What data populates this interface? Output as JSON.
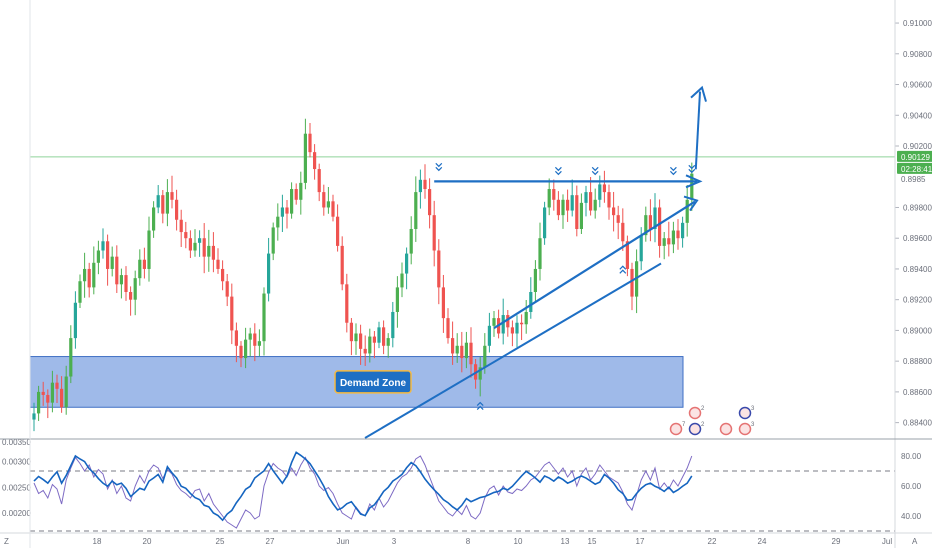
{
  "chart_data": {
    "type": "candlestick",
    "price_axis": {
      "ticks": [
        "0.91000",
        "0.90800",
        "0.90600",
        "0.90400",
        "0.90200",
        "0.89800",
        "0.89600",
        "0.89400",
        "0.89200",
        "0.89000",
        "0.88800",
        "0.88600",
        "0.88400"
      ],
      "tick_values": [
        0.91,
        0.908,
        0.906,
        0.904,
        0.902,
        0.898,
        0.896,
        0.894,
        0.892,
        0.89,
        0.888,
        0.886,
        0.884
      ],
      "range": [
        0.883,
        0.9115
      ],
      "current_price": "0.90129",
      "current_value": 0.90129,
      "countdown": "02:28:41",
      "partial_label": "0.8985"
    },
    "time_axis": {
      "labels": [
        "18",
        "20",
        "25",
        "27",
        "Jun",
        "3",
        "8",
        "10",
        "13",
        "15",
        "17",
        "22",
        "24",
        "29",
        "Jul"
      ]
    },
    "price_series": [
      0.8846,
      0.886,
      0.8858,
      0.8853,
      0.8866,
      0.8862,
      0.885,
      0.887,
      0.8895,
      0.8918,
      0.8932,
      0.894,
      0.8928,
      0.8944,
      0.8952,
      0.8958,
      0.894,
      0.8948,
      0.893,
      0.8936,
      0.8925,
      0.892,
      0.8934,
      0.8946,
      0.894,
      0.8965,
      0.898,
      0.8988,
      0.8976,
      0.899,
      0.8985,
      0.8972,
      0.8964,
      0.896,
      0.8952,
      0.8957,
      0.896,
      0.8948,
      0.8955,
      0.8946,
      0.894,
      0.8932,
      0.8922,
      0.89,
      0.889,
      0.8882,
      0.8894,
      0.8898,
      0.889,
      0.8893,
      0.8924,
      0.895,
      0.8967,
      0.8974,
      0.898,
      0.8976,
      0.8992,
      0.8985,
      0.8996,
      0.9028,
      0.9016,
      0.9005,
      0.899,
      0.898,
      0.8984,
      0.8974,
      0.8955,
      0.893,
      0.8905,
      0.8893,
      0.8898,
      0.8888,
      0.8885,
      0.8896,
      0.8892,
      0.8902,
      0.889,
      0.8895,
      0.8912,
      0.8928,
      0.8937,
      0.895,
      0.8966,
      0.899,
      0.8998,
      0.8992,
      0.8975,
      0.8952,
      0.8928,
      0.8908,
      0.8895,
      0.8885,
      0.889,
      0.8882,
      0.8892,
      0.8878,
      0.8868,
      0.8876,
      0.889,
      0.8903,
      0.8908,
      0.8898,
      0.891,
      0.8902,
      0.8898,
      0.8905,
      0.8904,
      0.8912,
      0.8925,
      0.894,
      0.896,
      0.898,
      0.8992,
      0.8985,
      0.8975,
      0.8985,
      0.8978,
      0.8988,
      0.8966,
      0.8983,
      0.899,
      0.8978,
      0.8985,
      0.8995,
      0.899,
      0.898,
      0.8975,
      0.897,
      0.8958,
      0.894,
      0.8922,
      0.8945,
      0.8962,
      0.8975,
      0.8966,
      0.898,
      0.8955,
      0.896,
      0.8956,
      0.8965,
      0.896,
      0.897,
      0.8985,
      0.9002
    ],
    "rsi_series": [
      62,
      55,
      57,
      52,
      61,
      58,
      48,
      64,
      72,
      79,
      75,
      70,
      74,
      66,
      71,
      68,
      58,
      64,
      55,
      60,
      52,
      50,
      60,
      67,
      62,
      70,
      74,
      72,
      65,
      71,
      68,
      61,
      57,
      55,
      52,
      57,
      58,
      50,
      55,
      48,
      44,
      40,
      36,
      34,
      32,
      38,
      44,
      42,
      38,
      40,
      60,
      69,
      75,
      72,
      70,
      66,
      72,
      67,
      74,
      79,
      72,
      68,
      60,
      57,
      59,
      55,
      48,
      42,
      40,
      38,
      46,
      42,
      40,
      48,
      44,
      52,
      46,
      50,
      56,
      62,
      66,
      68,
      72,
      78,
      80,
      74,
      66,
      58,
      50,
      46,
      42,
      40,
      44,
      41,
      47,
      40,
      38,
      42,
      52,
      58,
      60,
      54,
      60,
      56,
      55,
      58,
      57,
      60,
      64,
      66,
      70,
      74,
      76,
      72,
      68,
      72,
      66,
      70,
      60,
      68,
      72,
      64,
      68,
      74,
      70,
      66,
      64,
      62,
      56,
      48,
      44,
      54,
      64,
      70,
      64,
      72,
      58,
      62,
      58,
      64,
      60,
      66,
      72,
      80
    ],
    "osc_series": [
      0.00262,
      0.00271,
      0.00265,
      0.00258,
      0.0027,
      0.0028,
      0.00258,
      0.00273,
      0.00292,
      0.00311,
      0.00305,
      0.003,
      0.00286,
      0.00278,
      0.00267,
      0.00258,
      0.00252,
      0.00262,
      0.00255,
      0.00258,
      0.00248,
      0.00232,
      0.0024,
      0.00248,
      0.00245,
      0.00262,
      0.00268,
      0.00275,
      0.0026,
      0.0029,
      0.00278,
      0.00268,
      0.00252,
      0.00248,
      0.00238,
      0.0023,
      0.00226,
      0.00215,
      0.00212,
      0.002,
      0.00195,
      0.00186,
      0.00198,
      0.00205,
      0.0022,
      0.00232,
      0.00246,
      0.00252,
      0.00268,
      0.00275,
      0.00282,
      0.00296,
      0.00282,
      0.0027,
      0.00258,
      0.00272,
      0.00298,
      0.00318,
      0.00312,
      0.00305,
      0.00296,
      0.00282,
      0.00268,
      0.00252,
      0.00232,
      0.00218,
      0.00206,
      0.0021,
      0.00218,
      0.00222,
      0.0021,
      0.00198,
      0.00195,
      0.0021,
      0.00216,
      0.00228,
      0.00242,
      0.0025,
      0.00262,
      0.00268,
      0.00275,
      0.00288,
      0.00298,
      0.00292,
      0.0028,
      0.00266,
      0.00255,
      0.00245,
      0.00236,
      0.00226,
      0.0022,
      0.00212,
      0.00206,
      0.00215,
      0.00228,
      0.00222,
      0.00226,
      0.0023,
      0.00232,
      0.00236,
      0.0024,
      0.00242,
      0.00248,
      0.00245,
      0.00252,
      0.00262,
      0.00272,
      0.00281,
      0.00275,
      0.00268,
      0.0026,
      0.00272,
      0.00268,
      0.00262,
      0.0027,
      0.00265,
      0.00258,
      0.00262,
      0.00268,
      0.00272,
      0.00268,
      0.00262,
      0.00256,
      0.0026,
      0.00275,
      0.00268,
      0.00258,
      0.00245,
      0.00238,
      0.00225,
      0.00226,
      0.00238,
      0.00248,
      0.00255,
      0.00258,
      0.00252,
      0.00248,
      0.00242,
      0.0025,
      0.0024,
      0.00245,
      0.00252,
      0.00258,
      0.00272
    ],
    "indicator_axis": {
      "left_ticks": [
        "0.00300",
        "0.00250",
        "0.00200"
      ],
      "left_values": [
        0.003,
        0.0025,
        0.002
      ],
      "left_range": [
        0.00165,
        0.0034
      ],
      "right_ticks": [
        "80.00",
        "60.00",
        "40.00"
      ],
      "right_values": [
        80,
        60,
        40
      ],
      "right_range": [
        30,
        90
      ],
      "dashed_levels": [
        70,
        30
      ]
    },
    "annotations": {
      "demand_zone_label": "Demand Zone",
      "demand_zone_range": [
        0.885,
        0.8883
      ],
      "resistance_level": 0.8997,
      "breakout_target": 0.9058,
      "current_price_line": 0.90129
    },
    "event_badges": [
      "7",
      "2",
      "2",
      "3",
      "3"
    ]
  },
  "corner_labels": {
    "bottom_left": "Z",
    "bottom_right": "A",
    "left_partial_tick": "0.00350"
  },
  "colors": {
    "up": "#26a69a",
    "up_alt": "#4caf50",
    "down": "#ef5350",
    "blue_annotation": "#1e6fc4",
    "zone_fill": "#7a9fe0",
    "price_line": "#8fd39a",
    "price_badge": "#4caf50",
    "osc_line": "#1565c0",
    "rsi_line": "#7e6bc4"
  }
}
